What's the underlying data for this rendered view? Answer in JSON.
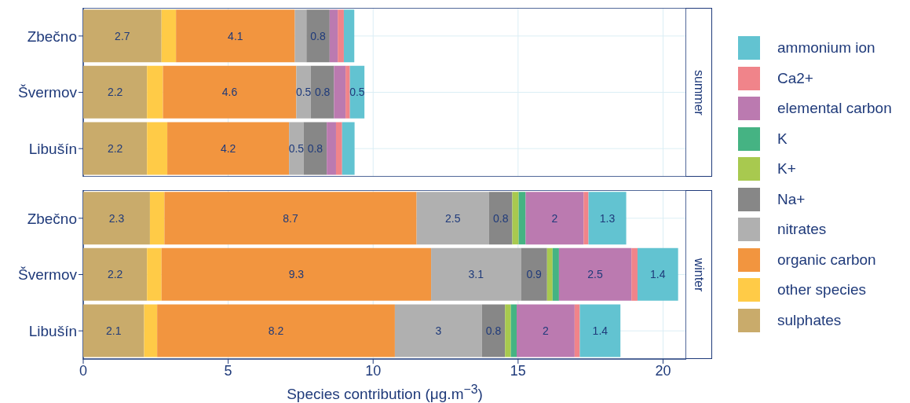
{
  "chart_data": [
    {
      "type": "bar",
      "orientation": "horizontal",
      "stacked": true,
      "title": "summer",
      "categories": [
        "Zbečno",
        "Švermov",
        "Libušín"
      ],
      "xlim": [
        0,
        20.8
      ],
      "xticks": [
        0,
        5,
        10,
        15,
        20
      ],
      "tick_labels": "y",
      "grid": true,
      "series": [
        {
          "color": "#c9ab6b",
          "values": [
            2.7,
            2.2,
            2.2
          ],
          "value_labels": [
            "2.7",
            "2.2",
            "2.2"
          ]
        },
        {
          "color": "#ffcb47",
          "values": [
            0.5,
            0.55,
            0.7
          ],
          "value_labels": [
            null,
            null,
            null
          ]
        },
        {
          "color": "#f2953f",
          "values": [
            4.1,
            4.6,
            4.2
          ],
          "value_labels": [
            "4.1",
            "4.6",
            "4.2"
          ]
        },
        {
          "color": "#b0b0b0",
          "values": [
            0.4,
            0.5,
            0.5
          ],
          "value_labels": [
            null,
            "0.5",
            "0.5"
          ]
        },
        {
          "color": "#878787",
          "values": [
            0.8,
            0.8,
            0.8
          ],
          "value_labels": [
            "0.8",
            "0.8",
            "0.8"
          ]
        },
        {
          "color": "#a8c94f",
          "values": [
            0,
            0,
            0
          ],
          "value_labels": [
            null,
            null,
            null
          ]
        },
        {
          "color": "#45b383",
          "values": [
            0,
            0,
            0
          ],
          "value_labels": [
            null,
            null,
            null
          ]
        },
        {
          "color": "#bb7ab0",
          "values": [
            0.28,
            0.4,
            0.32
          ],
          "value_labels": [
            null,
            null,
            null
          ]
        },
        {
          "color": "#f0848a",
          "values": [
            0.21,
            0.15,
            0.21
          ],
          "value_labels": [
            null,
            null,
            null
          ]
        },
        {
          "color": "#62c3d1",
          "values": [
            0.36,
            0.5,
            0.43
          ],
          "value_labels": [
            null,
            "0.5",
            null
          ]
        }
      ]
    },
    {
      "type": "bar",
      "orientation": "horizontal",
      "stacked": true,
      "title": "winter",
      "xlabel": "Species contribution (μg.m$^{−3}$)",
      "categories": [
        "Zbečno",
        "Švermov",
        "Libušín"
      ],
      "xlim": [
        0,
        20.8
      ],
      "xticks": [
        0,
        5,
        10,
        15,
        20
      ],
      "grid": true,
      "legend": "right",
      "series": [
        {
          "name": "sulphates",
          "color": "#c9ab6b",
          "values": [
            2.3,
            2.2,
            2.1
          ],
          "value_labels": [
            "2.3",
            "2.2",
            "2.1"
          ]
        },
        {
          "name": "other species",
          "color": "#ffcb47",
          "values": [
            0.5,
            0.5,
            0.45
          ],
          "value_labels": [
            null,
            null,
            null
          ]
        },
        {
          "name": "organic carbon",
          "color": "#f2953f",
          "values": [
            8.7,
            9.3,
            8.2
          ],
          "value_labels": [
            "8.7",
            "9.3",
            "8.2"
          ]
        },
        {
          "name": "nitrates",
          "color": "#b0b0b0",
          "values": [
            2.5,
            3.1,
            3
          ],
          "value_labels": [
            "2.5",
            "3.1",
            "3"
          ]
        },
        {
          "name": "Na+",
          "color": "#878787",
          "values": [
            0.8,
            0.9,
            0.8
          ],
          "value_labels": [
            "0.8",
            "0.9",
            "0.8"
          ]
        },
        {
          "name": "K+",
          "color": "#a8c94f",
          "values": [
            0.22,
            0.19,
            0.2
          ],
          "value_labels": [
            null,
            null,
            null
          ]
        },
        {
          "name": "K",
          "color": "#45b383",
          "values": [
            0.24,
            0.22,
            0.2
          ],
          "value_labels": [
            null,
            null,
            null
          ]
        },
        {
          "name": "elemental carbon",
          "color": "#bb7ab0",
          "values": [
            2,
            2.5,
            2
          ],
          "value_labels": [
            "2",
            "2.5",
            "2"
          ]
        },
        {
          "name": "Ca2+",
          "color": "#f0848a",
          "values": [
            0.17,
            0.21,
            0.18
          ],
          "value_labels": [
            null,
            null,
            null
          ]
        },
        {
          "name": "ammonium ion",
          "color": "#62c3d1",
          "values": [
            1.3,
            1.4,
            1.4
          ],
          "value_labels": [
            "1.3",
            "1.4",
            "1.4"
          ]
        }
      ]
    }
  ]
}
